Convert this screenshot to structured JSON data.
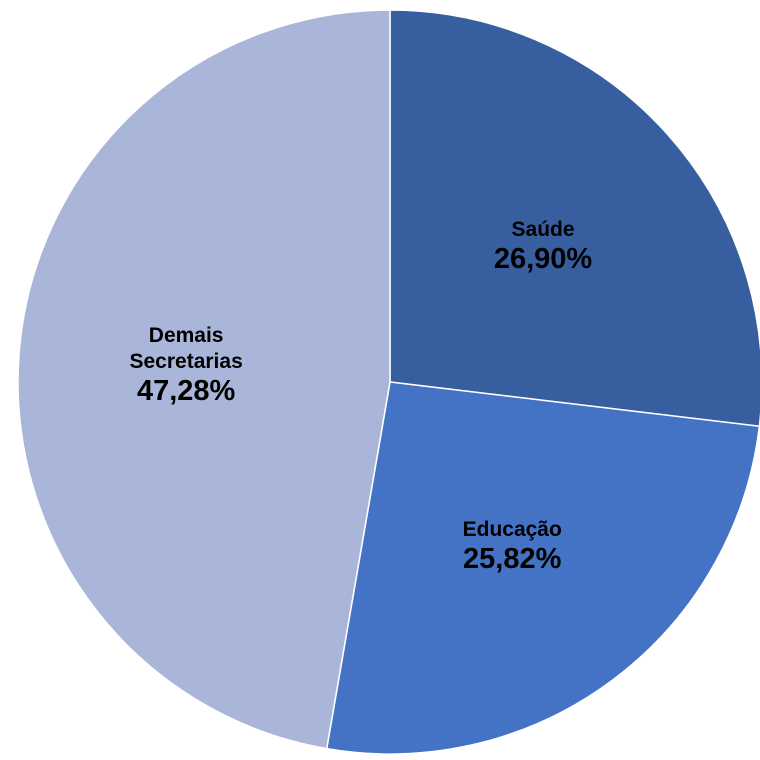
{
  "chart_data": {
    "type": "pie",
    "categories": [
      "Saúde",
      "Educação",
      "Demais Secretarias"
    ],
    "values": [
      26.9,
      25.82,
      47.28
    ],
    "value_labels": [
      "26,90%",
      "25,82%",
      "47,28%"
    ],
    "colors": [
      "#375fa0",
      "#4472c4",
      "#a9b6d9"
    ]
  }
}
